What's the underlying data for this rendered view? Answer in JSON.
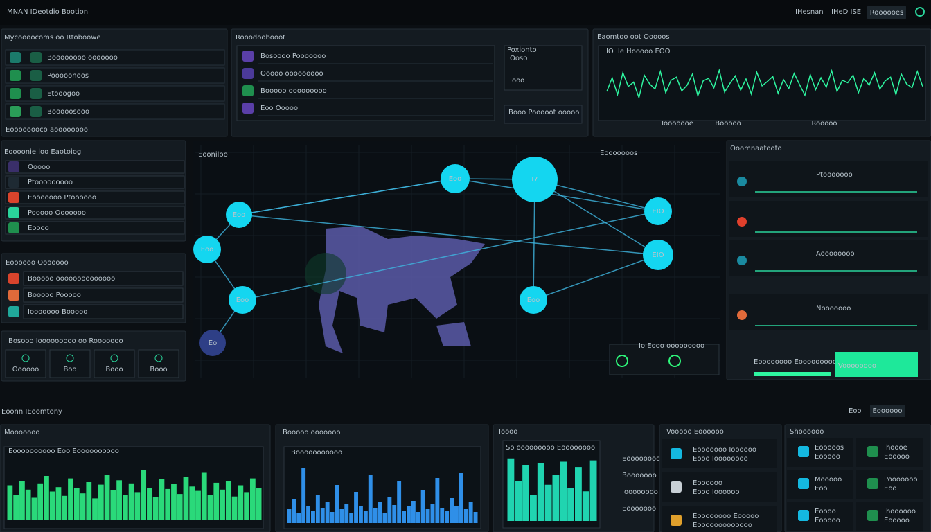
{
  "header": {
    "title": "MNAN IDeotdio Bootion",
    "links": [
      "IHesnan",
      "IHeD ISE"
    ],
    "button": "Roooooes"
  },
  "modules": {
    "title": "Mycoooocoms oo Rtoboowe",
    "items": [
      "Boooooooo ooooooo",
      "Pooooonoos",
      "Etooogoo",
      "Booooosooo"
    ],
    "footer": "Eoooooooco aoooooooo"
  },
  "records": {
    "title": "Rooodoobooot",
    "items": [
      "Bosoooo Pooooooo",
      "Ooooo ooooooooo",
      "Booooo ooooooooo",
      "Eoo Ooooo"
    ],
    "side_title": "Poxionto",
    "side_items": [
      "Ooso",
      "Iooo"
    ],
    "side_button": "Booo Pooooot ooooo"
  },
  "signals": {
    "title": "Eaomtoo oot Ooooos",
    "legend": "IIO IIe Hooooo EOO",
    "x_labels": [
      "Iooooooe",
      "Booooo",
      "Rooooo"
    ],
    "ylim": [
      0,
      100
    ],
    "values": [
      40,
      62,
      35,
      70,
      48,
      55,
      30,
      66,
      52,
      44,
      72,
      38,
      58,
      63,
      41,
      50,
      68,
      33,
      57,
      61,
      46,
      74,
      39,
      53,
      65,
      42,
      60,
      36,
      71,
      49,
      56,
      64,
      37,
      59,
      45,
      69,
      51,
      34,
      67,
      43,
      62,
      47,
      73,
      40,
      58,
      54,
      66,
      38,
      61,
      50,
      70,
      44,
      57,
      63,
      35,
      68,
      52,
      46,
      72,
      48
    ]
  },
  "alerts": {
    "title": "Eoooonie loo Eaotoiog",
    "items": [
      "Ooooo",
      "Ptooooooooo",
      "Eooooooo Ptoooooo",
      "Pooooo Ooooooo",
      "Eoooo"
    ]
  },
  "sources": {
    "title": "Eoooooo Ooooooo",
    "items": [
      "Booooo oooooooooooooo",
      "Booooo Pooooo",
      "Iooooooo Booooo"
    ]
  },
  "devices": {
    "title": "Bosooo Iooooooooo oo Rooooooo",
    "items": [
      "Oooooo",
      "Boo",
      "Booo",
      "Booo"
    ]
  },
  "network": {
    "title": "Eooniloo",
    "legend_title": "Eooooooos",
    "nodes": [
      "I7",
      "Eoo",
      "Eoo",
      "Eoo",
      "Eoo",
      "Eoo",
      "EIO",
      "EIO",
      "Eo"
    ],
    "box_title": "Io Eooo ooooooooo"
  },
  "activity": {
    "title": "Ooomnaatooto",
    "items": [
      "Ptooooooo",
      "Aoooooooo",
      "Nooooooo"
    ],
    "footer": "Eoooooooo Eoooooooooo",
    "button": "Voooooooo"
  },
  "section": {
    "title": "Eoonn IEoomtony",
    "links": [
      "Eoo"
    ],
    "button": "Eoooooo"
  },
  "traffic": {
    "title": "Mooooooo",
    "legend": "Eoooooooooo Eoo Eoooooooooo",
    "ylim": [
      0,
      100
    ],
    "values": [
      55,
      40,
      62,
      48,
      35,
      58,
      70,
      45,
      52,
      38,
      66,
      50,
      42,
      60,
      34,
      56,
      72,
      47,
      63,
      39,
      58,
      44,
      80,
      51,
      36,
      65,
      49,
      57,
      41,
      68,
      53,
      46,
      75,
      40,
      59,
      48,
      62,
      37,
      55,
      44,
      66,
      50
    ]
  },
  "flows": {
    "title": "Booooo ooooooo",
    "legend": "Booooooooooo",
    "ylim": [
      0,
      100
    ],
    "values": [
      20,
      35,
      15,
      80,
      25,
      18,
      40,
      22,
      30,
      16,
      55,
      20,
      28,
      14,
      45,
      24,
      18,
      70,
      22,
      30,
      15,
      38,
      26,
      60,
      18,
      24,
      32,
      16,
      48,
      20,
      28,
      65,
      22,
      18,
      36,
      24,
      72,
      20,
      30,
      16
    ]
  },
  "ports": {
    "title": "Ioooo",
    "legend": "So ooooooooo Eoooooooo",
    "ylim": [
      0,
      100
    ],
    "values": [
      95,
      60,
      85,
      40,
      88,
      55,
      70,
      90,
      50,
      82,
      45,
      92
    ],
    "items": [
      "Eoooooooo",
      "Booooooo",
      "Ioooooooo",
      "Eooooooo"
    ]
  },
  "services": {
    "title": "Vooooo Eoooooo",
    "items": [
      {
        "name": "Eooooooo Ioooooo",
        "detail": "Eooo Ioooooooo"
      },
      {
        "name": "Eoooooo",
        "detail": "Eooo Ioooooo"
      },
      {
        "name": "Eoooooooo Eooooo",
        "detail": "Eooooooooooooo"
      }
    ]
  },
  "status": {
    "title": "Shoooooo",
    "items": [
      {
        "name": "Eooooos",
        "detail": "Eooooo"
      },
      {
        "name": "Ihoooe",
        "detail": "Eooooo"
      },
      {
        "name": "Mooooo",
        "detail": "Eoo"
      },
      {
        "name": "Pooooooo",
        "detail": "Eoo"
      },
      {
        "name": "Eoooo",
        "detail": "Eooooo"
      },
      {
        "name": "Ihoooooo",
        "detail": "Eooooo"
      }
    ]
  }
}
